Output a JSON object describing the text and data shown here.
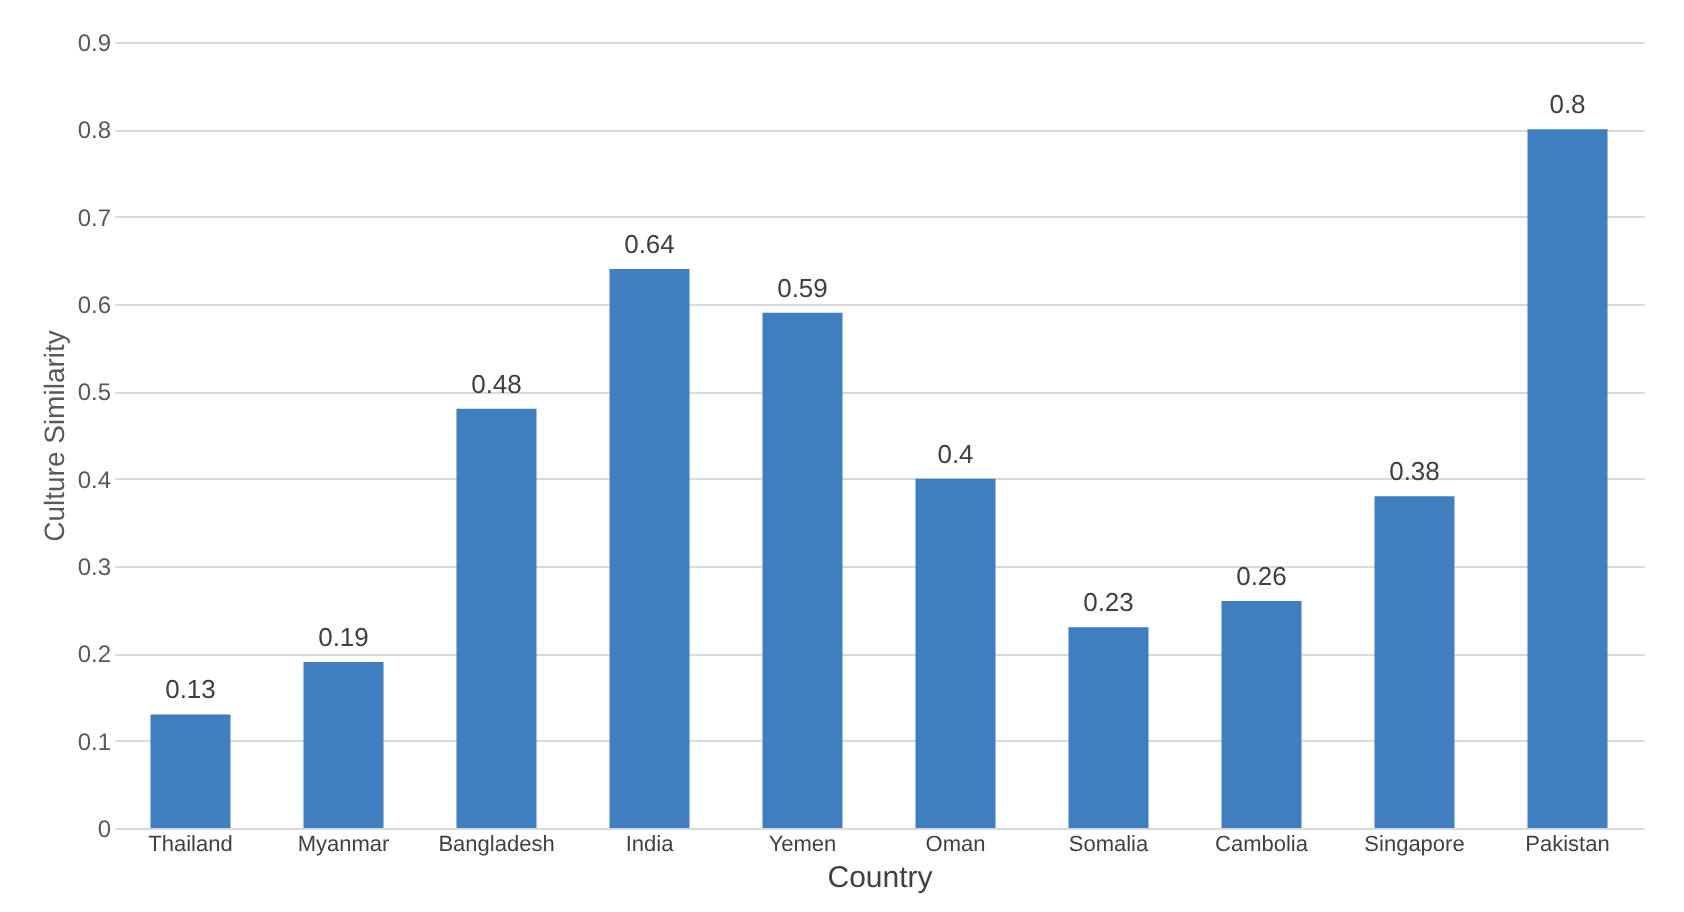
{
  "chart_data": {
    "type": "bar",
    "xlabel": "Country",
    "ylabel": "Culture Similarity",
    "categories": [
      "Thailand",
      "Myanmar",
      "Bangladesh",
      "India",
      "Yemen",
      "Oman",
      "Somalia",
      "Cambolia",
      "Singapore",
      "Pakistan"
    ],
    "values": [
      0.13,
      0.19,
      0.48,
      0.64,
      0.59,
      0.4,
      0.23,
      0.26,
      0.38,
      0.8
    ],
    "color": "#3f7fc0",
    "ylim": [
      0,
      0.9
    ],
    "yticks": [
      0,
      0.1,
      0.2,
      0.3,
      0.4,
      0.5,
      0.6,
      0.7,
      0.8,
      0.9
    ],
    "grid": "y",
    "data_labels": true
  }
}
